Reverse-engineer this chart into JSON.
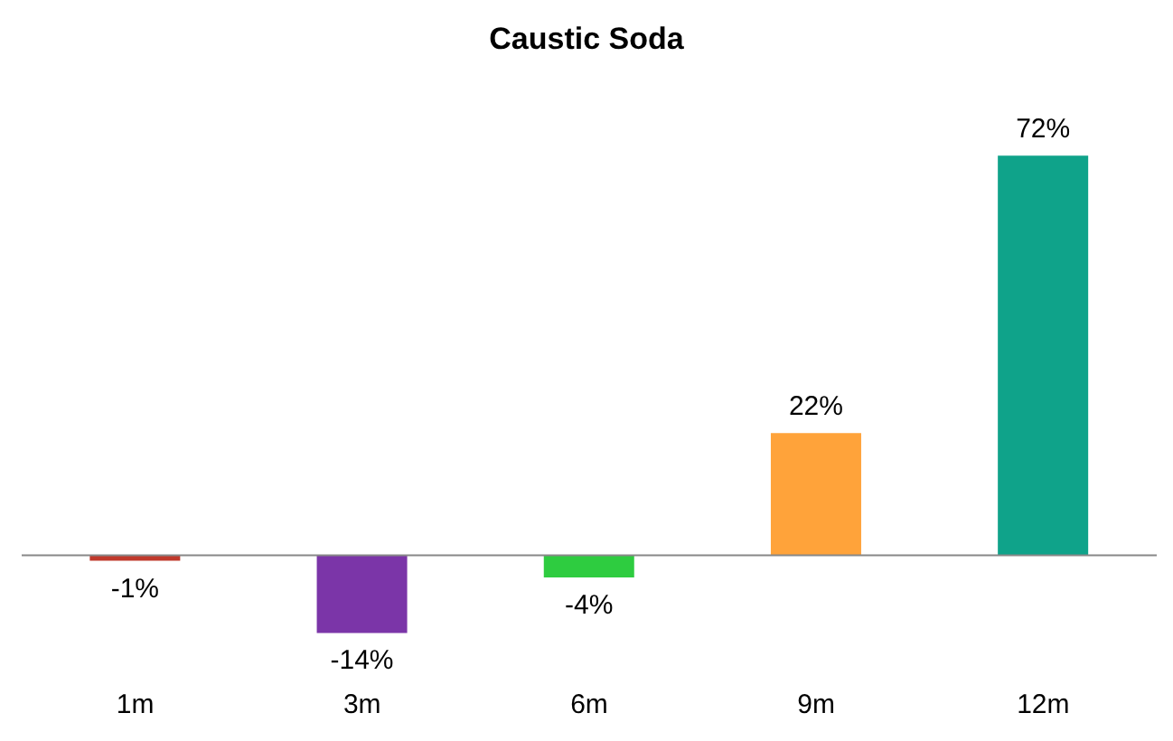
{
  "chart_data": {
    "type": "bar",
    "title": "Caustic Soda",
    "categories": [
      "1m",
      "3m",
      "6m",
      "9m",
      "12m"
    ],
    "values": [
      -1,
      -14,
      -4,
      22,
      72
    ],
    "colors": [
      "#c0392b",
      "#7b35a8",
      "#2ecc40",
      "#ffa33a",
      "#0fa38a"
    ],
    "value_labels": [
      "-1%",
      "-14%",
      "-4%",
      "22%",
      "72%"
    ]
  }
}
